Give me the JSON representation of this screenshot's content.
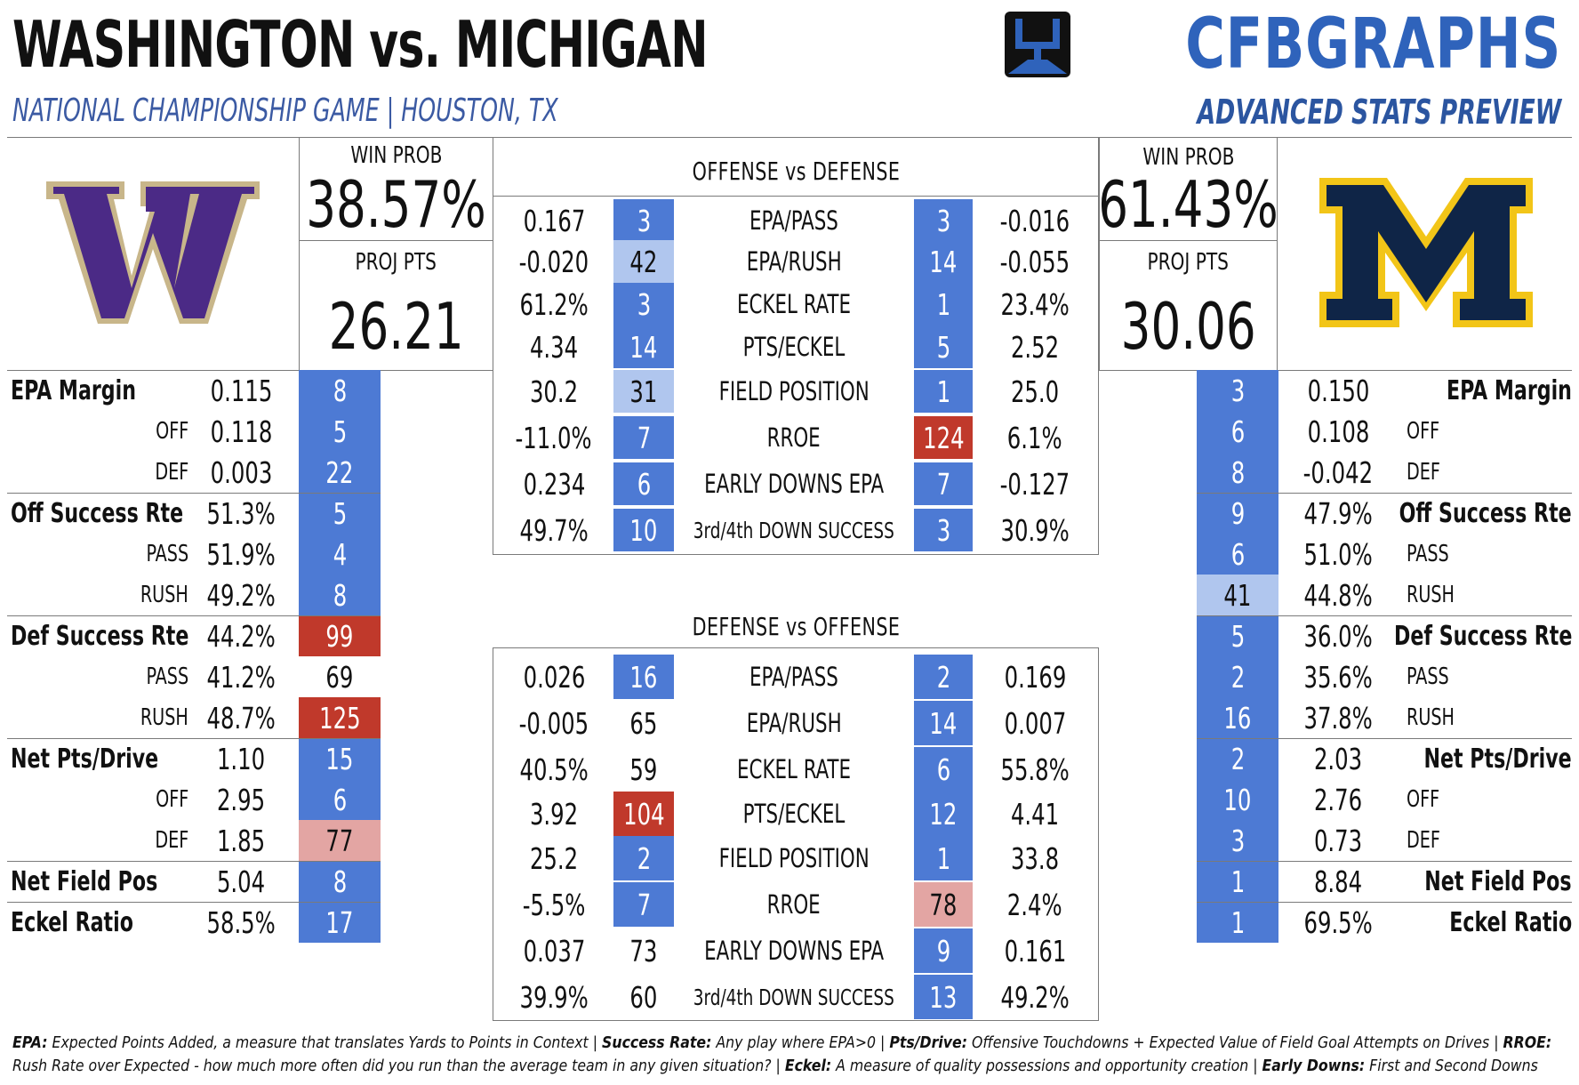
{
  "header": {
    "title": "WASHINGTON vs. MICHIGAN",
    "subtitle": "NATIONAL CHAMPIONSHIP GAME | HOUSTON, TX",
    "brand": "CFBGRAPHS",
    "tagline": "ADVANCED STATS PREVIEW"
  },
  "colors": {
    "rank_dark_blue": "#4d7ad4",
    "rank_light_blue": "#b0c6ee",
    "rank_dark_red": "#c0392b",
    "rank_light_red": "#e3a5a3",
    "washington_purple": "#4b2a86",
    "washington_gold": "#c8b68a",
    "michigan_navy": "#0f2547",
    "michigan_maize": "#f2c518"
  },
  "washington": {
    "logo_icon": "washington-w-logo",
    "win_prob_label": "WIN PROB",
    "win_prob": "38.57%",
    "proj_pts_label": "PROJ PTS",
    "proj_pts": "26.21",
    "stats": [
      {
        "label": "EPA Margin",
        "bold": true,
        "value": "0.115",
        "rank": "8",
        "color": "blue"
      },
      {
        "label": "OFF",
        "bold": false,
        "value": "0.118",
        "rank": "5",
        "color": "blue"
      },
      {
        "label": "DEF",
        "bold": false,
        "value": "0.003",
        "rank": "22",
        "color": "blue"
      },
      {
        "label": "Off Success Rte",
        "bold": true,
        "value": "51.3%",
        "rank": "5",
        "color": "blue"
      },
      {
        "label": "PASS",
        "bold": false,
        "value": "51.9%",
        "rank": "4",
        "color": "blue"
      },
      {
        "label": "RUSH",
        "bold": false,
        "value": "49.2%",
        "rank": "8",
        "color": "blue"
      },
      {
        "label": "Def Success Rte",
        "bold": true,
        "value": "44.2%",
        "rank": "99",
        "color": "red"
      },
      {
        "label": "PASS",
        "bold": false,
        "value": "41.2%",
        "rank": "69",
        "color": "none"
      },
      {
        "label": "RUSH",
        "bold": false,
        "value": "48.7%",
        "rank": "125",
        "color": "red"
      },
      {
        "label": "Net Pts/Drive",
        "bold": true,
        "value": "1.10",
        "rank": "15",
        "color": "blue"
      },
      {
        "label": "OFF",
        "bold": false,
        "value": "2.95",
        "rank": "6",
        "color": "blue"
      },
      {
        "label": "DEF",
        "bold": false,
        "value": "1.85",
        "rank": "77",
        "color": "lightred"
      },
      {
        "label": "Net Field Pos",
        "bold": true,
        "value": "5.04",
        "rank": "8",
        "color": "blue"
      },
      {
        "label": "Eckel Ratio",
        "bold": true,
        "value": "58.5%",
        "rank": "17",
        "color": "blue"
      }
    ]
  },
  "michigan": {
    "logo_icon": "michigan-m-logo",
    "win_prob_label": "WIN PROB",
    "win_prob": "61.43%",
    "proj_pts_label": "PROJ PTS",
    "proj_pts": "30.06",
    "stats": [
      {
        "label": "EPA Margin",
        "bold": true,
        "value": "0.150",
        "rank": "3",
        "color": "blue"
      },
      {
        "label": "OFF",
        "bold": false,
        "value": "0.108",
        "rank": "6",
        "color": "blue"
      },
      {
        "label": "DEF",
        "bold": false,
        "value": "-0.042",
        "rank": "8",
        "color": "blue"
      },
      {
        "label": "Off Success Rte",
        "bold": true,
        "value": "47.9%",
        "rank": "9",
        "color": "blue"
      },
      {
        "label": "PASS",
        "bold": false,
        "value": "51.0%",
        "rank": "6",
        "color": "blue"
      },
      {
        "label": "RUSH",
        "bold": false,
        "value": "44.8%",
        "rank": "41",
        "color": "lightblue"
      },
      {
        "label": "Def Success Rte",
        "bold": true,
        "value": "36.0%",
        "rank": "5",
        "color": "blue"
      },
      {
        "label": "PASS",
        "bold": false,
        "value": "35.6%",
        "rank": "2",
        "color": "blue"
      },
      {
        "label": "RUSH",
        "bold": false,
        "value": "37.8%",
        "rank": "16",
        "color": "blue"
      },
      {
        "label": "Net Pts/Drive",
        "bold": true,
        "value": "2.03",
        "rank": "2",
        "color": "blue"
      },
      {
        "label": "OFF",
        "bold": false,
        "value": "2.76",
        "rank": "10",
        "color": "blue"
      },
      {
        "label": "DEF",
        "bold": false,
        "value": "0.73",
        "rank": "3",
        "color": "blue"
      },
      {
        "label": "Net Field Pos",
        "bold": true,
        "value": "8.84",
        "rank": "1",
        "color": "blue"
      },
      {
        "label": "Eckel Ratio",
        "bold": true,
        "value": "69.5%",
        "rank": "1",
        "color": "blue"
      }
    ]
  },
  "offense_vs_defense": {
    "title": "OFFENSE vs DEFENSE",
    "rows": [
      {
        "metric": "EPA/PASS",
        "wash_val": "0.167",
        "wash_rank": "3",
        "wash_color": "blue",
        "mich_rank": "3",
        "mich_color": "blue",
        "mich_val": "-0.016"
      },
      {
        "metric": "EPA/RUSH",
        "wash_val": "-0.020",
        "wash_rank": "42",
        "wash_color": "lightblue",
        "mich_rank": "14",
        "mich_color": "blue",
        "mich_val": "-0.055"
      },
      {
        "metric": "ECKEL RATE",
        "wash_val": "61.2%",
        "wash_rank": "3",
        "wash_color": "blue",
        "mich_rank": "1",
        "mich_color": "blue",
        "mich_val": "23.4%"
      },
      {
        "metric": "PTS/ECKEL",
        "wash_val": "4.34",
        "wash_rank": "14",
        "wash_color": "blue",
        "mich_rank": "5",
        "mich_color": "blue",
        "mich_val": "2.52"
      },
      {
        "metric": "FIELD POSITION",
        "wash_val": "30.2",
        "wash_rank": "31",
        "wash_color": "lightblue",
        "mich_rank": "1",
        "mich_color": "blue",
        "mich_val": "25.0"
      },
      {
        "metric": "RROE",
        "wash_val": "-11.0%",
        "wash_rank": "7",
        "wash_color": "blue",
        "mich_rank": "124",
        "mich_color": "red",
        "mich_val": "6.1%"
      },
      {
        "metric": "EARLY DOWNS EPA",
        "wash_val": "0.234",
        "wash_rank": "6",
        "wash_color": "blue",
        "mich_rank": "7",
        "mich_color": "blue",
        "mich_val": "-0.127"
      },
      {
        "metric": "3rd/4th DOWN SUCCESS",
        "wash_val": "49.7%",
        "wash_rank": "10",
        "wash_color": "blue",
        "mich_rank": "3",
        "mich_color": "blue",
        "mich_val": "30.9%"
      }
    ]
  },
  "defense_vs_offense": {
    "title": "DEFENSE vs OFFENSE",
    "rows": [
      {
        "metric": "EPA/PASS",
        "wash_val": "0.026",
        "wash_rank": "16",
        "wash_color": "blue",
        "mich_rank": "2",
        "mich_color": "blue",
        "mich_val": "0.169"
      },
      {
        "metric": "EPA/RUSH",
        "wash_val": "-0.005",
        "wash_rank": "65",
        "wash_color": "none",
        "mich_rank": "14",
        "mich_color": "blue",
        "mich_val": "0.007"
      },
      {
        "metric": "ECKEL RATE",
        "wash_val": "40.5%",
        "wash_rank": "59",
        "wash_color": "none",
        "mich_rank": "6",
        "mich_color": "blue",
        "mich_val": "55.8%"
      },
      {
        "metric": "PTS/ECKEL",
        "wash_val": "3.92",
        "wash_rank": "104",
        "wash_color": "red",
        "mich_rank": "12",
        "mich_color": "blue",
        "mich_val": "4.41"
      },
      {
        "metric": "FIELD POSITION",
        "wash_val": "25.2",
        "wash_rank": "2",
        "wash_color": "blue",
        "mich_rank": "1",
        "mich_color": "blue",
        "mich_val": "33.8"
      },
      {
        "metric": "RROE",
        "wash_val": "-5.5%",
        "wash_rank": "7",
        "wash_color": "blue",
        "mich_rank": "78",
        "mich_color": "lightred",
        "mich_val": "2.4%"
      },
      {
        "metric": "EARLY DOWNS EPA",
        "wash_val": "0.037",
        "wash_rank": "73",
        "wash_color": "none",
        "mich_rank": "9",
        "mich_color": "blue",
        "mich_val": "0.161"
      },
      {
        "metric": "3rd/4th DOWN SUCCESS",
        "wash_val": "39.9%",
        "wash_rank": "60",
        "wash_color": "none",
        "mich_rank": "13",
        "mich_color": "blue",
        "mich_val": "49.2%"
      }
    ]
  },
  "footnote": [
    {
      "term": "EPA:",
      "text": " Expected Points Added, a measure that translates Yards to Points in Context | "
    },
    {
      "term": "Success Rate:",
      "text": " Any play where EPA>0 | "
    },
    {
      "term": "Pts/Drive:",
      "text": " Offensive Touchdowns + Expected Value of Field Goal Attempts on Drives | "
    },
    {
      "term": "RROE:",
      "text": " Rush Rate over Expected - how much more often did you run than the average team in any given situation? | "
    },
    {
      "term": "Eckel:",
      "text": " A measure of quality possessions and opportunity creation | "
    },
    {
      "term": "Early Downs:",
      "text": " First and Second Downs"
    }
  ]
}
